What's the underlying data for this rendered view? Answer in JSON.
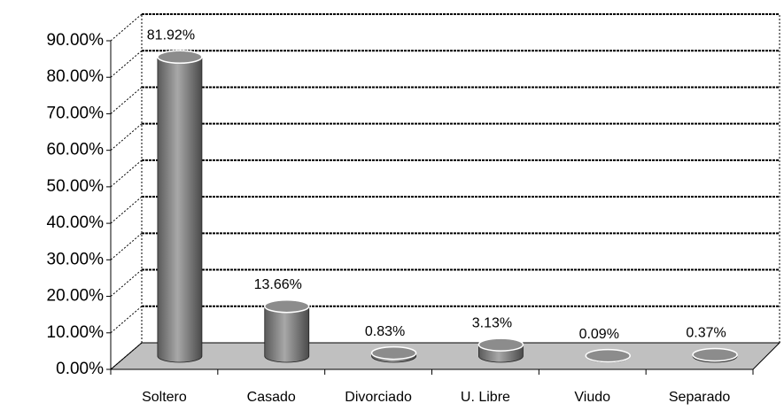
{
  "chart_data": {
    "type": "bar",
    "categories": [
      "Soltero",
      "Casado",
      "Divorciado",
      "U. Libre",
      "Viudo",
      "Separado"
    ],
    "values": [
      81.92,
      13.66,
      0.83,
      3.13,
      0.09,
      0.37
    ],
    "value_labels": [
      "81.92%",
      "13.66%",
      "0.83%",
      "3.13%",
      "0.09%",
      "0.37%"
    ],
    "color": "#808080",
    "ylim": [
      0,
      90
    ],
    "yticks": [
      {
        "value": 0,
        "label": "0.00%"
      },
      {
        "value": 10,
        "label": "10.00%"
      },
      {
        "value": 20,
        "label": "20.00%"
      },
      {
        "value": 30,
        "label": "30.00%"
      },
      {
        "value": 40,
        "label": "40.00%"
      },
      {
        "value": 50,
        "label": "50.00%"
      },
      {
        "value": 60,
        "label": "60.00%"
      },
      {
        "value": 70,
        "label": "70.00%"
      },
      {
        "value": 80,
        "label": "80.00%"
      },
      {
        "value": 90,
        "label": "90.00%"
      }
    ],
    "grid": true
  }
}
